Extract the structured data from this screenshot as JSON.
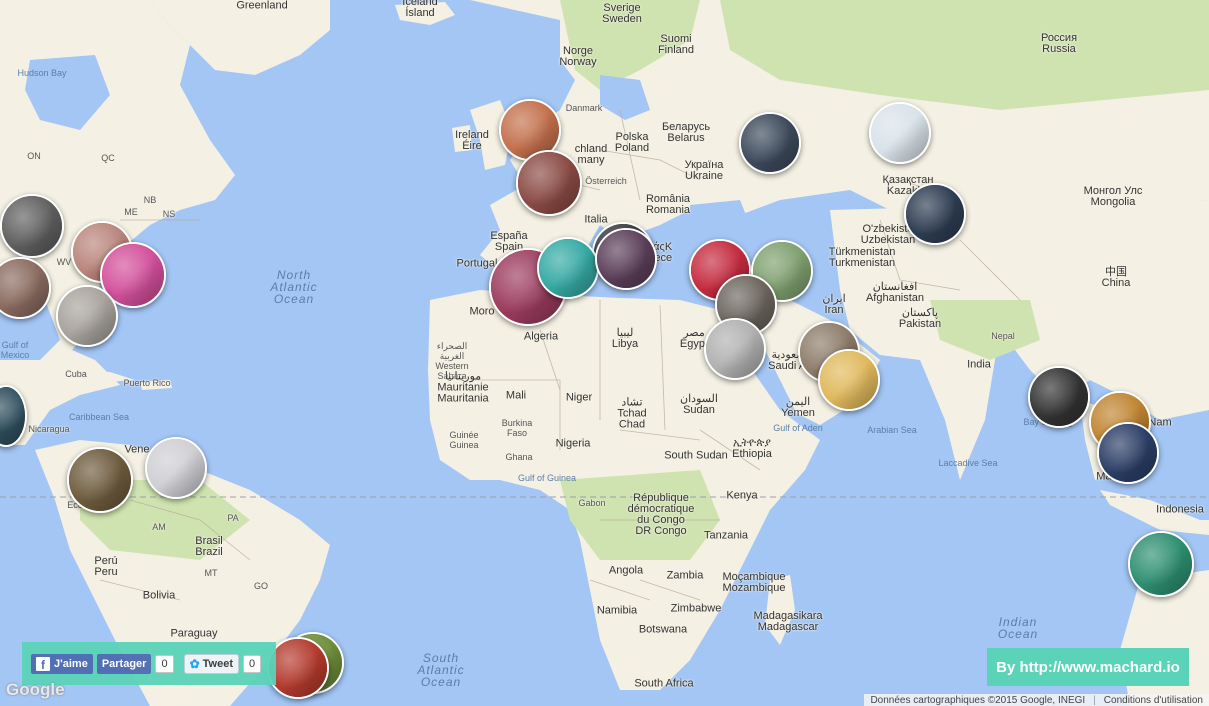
{
  "colors": {
    "water": "#a3c6f5",
    "land": "#f4f1e4",
    "green": "#cfe3b0",
    "share_bg": "#5bd3b8"
  },
  "labels": {
    "greenland": "Greenland",
    "iceland": "Iceland\nÍsland",
    "sweden": "Sverige\nSweden",
    "finland": "Suomi\nFinland",
    "norway": "Norge\nNorway",
    "russia": "Россия\nRussia",
    "hudson_bay": "Hudson Bay",
    "denmark": "Danmark",
    "ireland": "Ireland\nÉire",
    "poland": "Polska\nPoland",
    "belarus": "Беларусь\nBelarus",
    "germany": "chland\nmany",
    "ukraine": "Україна\nUkraine",
    "austria": "Österreich",
    "romania": "România\nRomania",
    "italy": "Italia",
    "spain": "España\nSpain",
    "portugal": "Portugal",
    "greece": "ΛάςΚ\nGece",
    "kazakhstan": "Қазақстан\nKazakhs",
    "mongolia": "Монгол Улс\nMongolia",
    "uzbekistan": "O'zbekisto\nUzbekistan",
    "turkmenistan": "Türkmenistan\nTurkmenistan",
    "china": "中国\nChina",
    "afghanistan": "افغانستان\nAfghanistan",
    "iran": "ایران\nIran",
    "pakistan": "پاکستان\nPakistan",
    "nepal": "Nepal",
    "india": "India",
    "on": "ON",
    "qc": "QC",
    "nb": "NB",
    "ns": "NS",
    "me": "ME",
    "wv": "WV",
    "north_atlantic": "North\nAtlantic\nOcean",
    "morocco": "Moro",
    "algeria": "Algeria",
    "libya": "ليبيا\nLibya",
    "egypt": "مصر\nEgypt",
    "saudi": "السعودية\nSaudi Ara",
    "western_sahara": "الصحراء\nالغربية\nWestern\nSahara",
    "mauritania": "موريتانيا\nMauritanie\nMauritania",
    "mali": "Mali",
    "niger": "Niger",
    "tchad": "تشاد\nTchad\nChad",
    "sudan": "السودان\nSudan",
    "yemen": "اليمن\nYemen",
    "gulf_aden": "Gulf of Aden",
    "arabian_sea": "Arabian Sea",
    "bay_bengal": "Bay of Beng",
    "laccadive": "Laccadive Sea",
    "cuba": "Cuba",
    "puerto_rico": "Puerto Rico",
    "gulf_mexico": "Gulf of\nMexico",
    "caribbean": "Caribbean Sea",
    "nicaragua": "Nicaragua",
    "guinee": "Guinée\nGuinea",
    "burkina": "Burkina\nFaso",
    "ghana": "Ghana",
    "nigeria": "Nigeria",
    "gulf_guinea": "Gulf of Guinea",
    "south_sudan": "South Sudan",
    "ethiopia": "ኢትዮጵያ\nEthiopia",
    "kenya": "Kenya",
    "gabon": "Gabon",
    "drc": "République\ndémocratique\ndu Congo\nDR Congo",
    "tanzania": "Tanzania",
    "angola": "Angola",
    "zambia": "Zambia",
    "mozambique": "Moçambique\nMozambique",
    "namibia": "Namibia",
    "zimbabwe": "Zimbabwe",
    "madagascar": "Madagasikara\nMadagascar",
    "botswana": "Botswana",
    "south_africa": "South Africa",
    "south_atlantic": "South\nAtlantic\nOcean",
    "indian_ocean": "Indian\nOcean",
    "malaysia": "Malaysia",
    "indonesia": "Indonesia",
    "nam": "Nam",
    "venezuela": "Vene",
    "ecuador": "Ecuador",
    "am": "AM",
    "brasil": "Brasil\nBrazil",
    "peru": "Perú\nPeru",
    "bolivia": "Bolivia",
    "paraguay": "Paraguay",
    "pa": "PA",
    "go": "GO",
    "mt": "MT"
  },
  "markers": [
    {
      "id": "m1",
      "color": "#c4704c"
    },
    {
      "id": "m2",
      "color": "#8b4a44"
    },
    {
      "id": "m3",
      "color": "#3d4a5c"
    },
    {
      "id": "m4",
      "color": "#d9e2ea"
    },
    {
      "id": "m5",
      "color": "#2e3d52"
    },
    {
      "id": "m6",
      "color": "#5f5f5f"
    },
    {
      "id": "m7",
      "color": "#b9857b"
    },
    {
      "id": "m8",
      "color": "#d24f9b"
    },
    {
      "id": "m9",
      "color": "#8a6b5f"
    },
    {
      "id": "m10",
      "color": "#a7a29c"
    },
    {
      "id": "m11",
      "color": "#9c3b5e"
    },
    {
      "id": "m12",
      "color": "#3a3a44"
    },
    {
      "id": "m13",
      "color": "#35a9a4"
    },
    {
      "id": "m14",
      "color": "#5b3f5a"
    },
    {
      "id": "m15",
      "color": "#c52b3f"
    },
    {
      "id": "m16",
      "color": "#7fa06f"
    },
    {
      "id": "m17",
      "color": "#6b655d"
    },
    {
      "id": "m18",
      "color": "#b1b1b1"
    },
    {
      "id": "m19",
      "color": "#8d7c6a"
    },
    {
      "id": "m20",
      "color": "#e0b95c"
    },
    {
      "id": "m21",
      "color": "#2f4f5e"
    },
    {
      "id": "m22",
      "color": "#6d5b3d"
    },
    {
      "id": "m23",
      "color": "#cfcfd4"
    },
    {
      "id": "m24",
      "color": "#333333"
    },
    {
      "id": "m25",
      "color": "#c08431"
    },
    {
      "id": "m26",
      "color": "#2b3e66"
    },
    {
      "id": "m27",
      "color": "#2d8f70"
    },
    {
      "id": "m28",
      "color": "#6f8e3a"
    },
    {
      "id": "m29",
      "color": "#b43a2d"
    }
  ],
  "share": {
    "like": "J'aime",
    "share": "Partager",
    "share_count": "0",
    "tweet": "Tweet",
    "tweet_count": "0"
  },
  "by_label": "By http://www.machard.io",
  "google_logo": "Google",
  "attribution": {
    "data": "Données cartographiques ©2015 Google, INEGI",
    "terms": "Conditions d'utilisation"
  }
}
